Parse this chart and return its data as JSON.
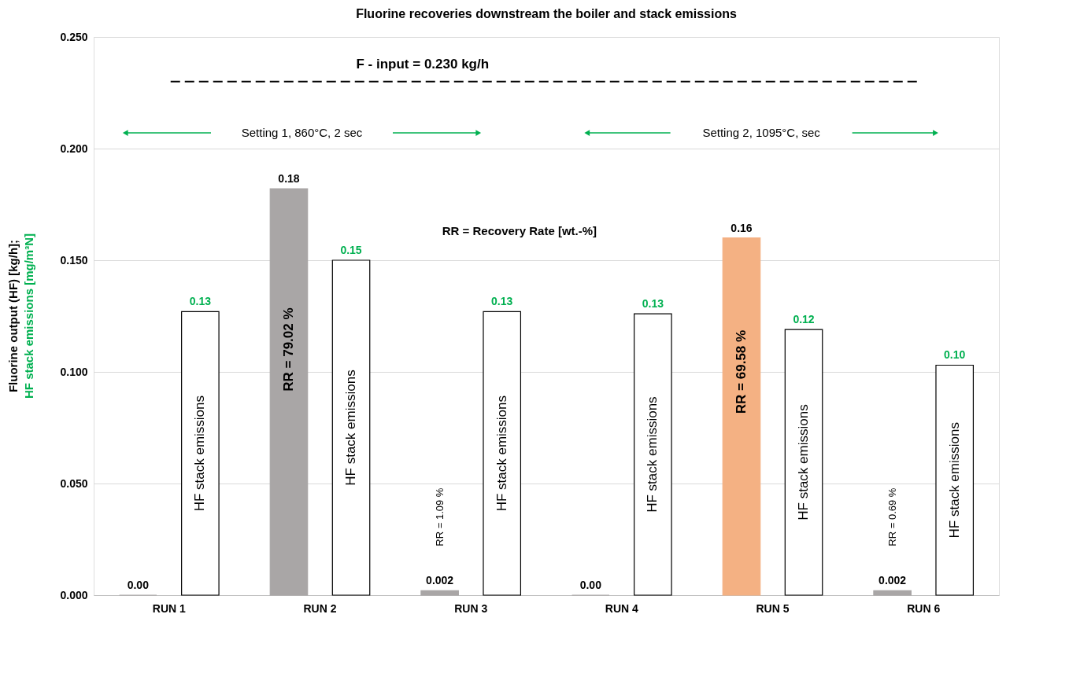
{
  "chart_data": {
    "type": "bar",
    "title": "Fluorine recoveries downstream the boiler and stack emissions",
    "ylabel": "Fluorine output (HF) [kg/h];\nHF  stack emissions [mg/m³N]",
    "categories": [
      "RUN 1",
      "RUN 2",
      "RUN 3",
      "RUN 4",
      "RUN 5",
      "RUN 6"
    ],
    "series": [
      {
        "colors": [
          "#a9a6a6",
          "#a9a6a6",
          "#a9a6a6",
          "#a9a6a6",
          "#f4b183",
          "#a9a6a6"
        ],
        "values": [
          0,
          0.182,
          0.002,
          0,
          0.16,
          0.002
        ],
        "value_labels": [
          "0.00",
          "0.18",
          "0.002",
          "0.00",
          "0.16",
          "0.002"
        ]
      },
      {
        "name": "HF stack emissions",
        "color": "#000000",
        "values": [
          0.127,
          0.15,
          0.127,
          0.126,
          0.119,
          0.103
        ],
        "value_labels": [
          "0.13",
          "0.15",
          "0.13",
          "0.13",
          "0.12",
          "0.10"
        ]
      }
    ],
    "ylim": [
      0,
      0.25
    ],
    "yticks": [
      {
        "value": 0,
        "label": "0.000"
      },
      {
        "value": 0.05,
        "label": "0.050"
      },
      {
        "value": 0.1,
        "label": "0.100"
      },
      {
        "value": 0.15,
        "label": "0.150"
      },
      {
        "value": 0.2,
        "label": "0.200"
      },
      {
        "value": 0.25,
        "label": "0.250"
      }
    ],
    "grid": "y",
    "ref_lines": [
      {
        "axis": "y",
        "value": 0.23,
        "label": "F - input = 0.230 kg/h",
        "color": "#000000",
        "line_style": "dashed"
      }
    ],
    "annotations": [
      "RR = 79.02 %",
      "RR = 1.09 %",
      "RR = 69.58 %",
      "RR = 0.69 %",
      "Setting 1, 860°C, 2 sec",
      "Setting 2, 1095°C,  sec",
      "RR = Recovery Rate [wt.-%]"
    ]
  }
}
